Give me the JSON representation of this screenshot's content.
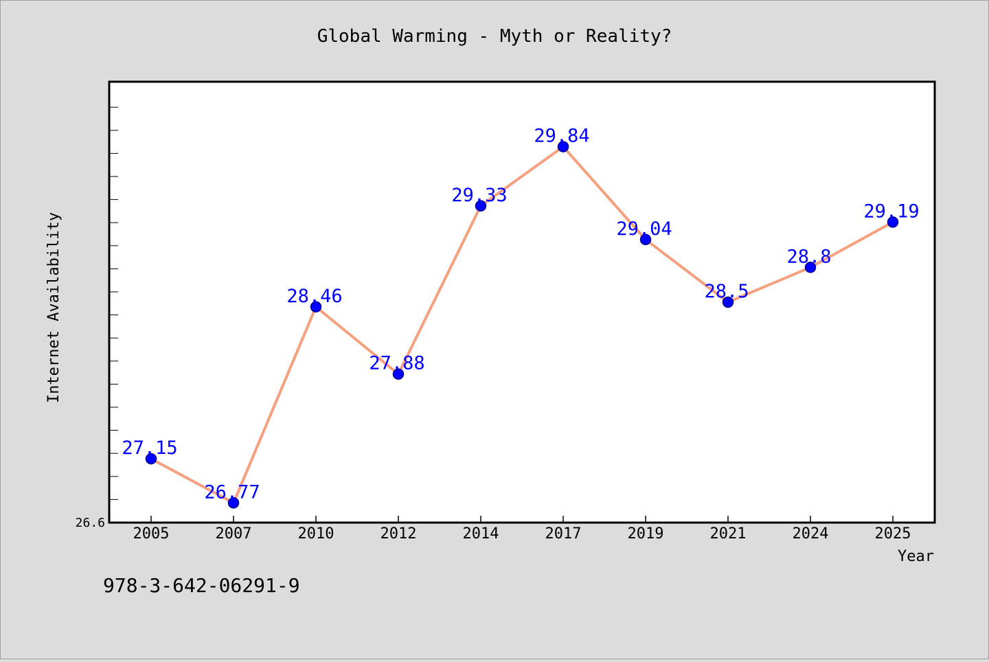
{
  "chart_data": {
    "type": "line",
    "title": "Global Warming - Myth or Reality?",
    "xlabel": "Year",
    "ylabel": "Internet Availability",
    "categories": [
      "2005",
      "2007",
      "2010",
      "2012",
      "2014",
      "2017",
      "2019",
      "2021",
      "2024",
      "2025"
    ],
    "values": [
      27.15,
      26.77,
      28.46,
      27.88,
      29.33,
      29.84,
      29.04,
      28.5,
      28.8,
      29.19
    ],
    "data_labels": [
      "27.15",
      "26.77",
      "28.46",
      "27.88",
      "29.33",
      "29.84",
      "29.04",
      "28.5",
      "28.8",
      "29.19"
    ],
    "ylim": [
      26.6,
      30.4
    ],
    "y_tick_label": "26.6",
    "grid": false,
    "legend": "none",
    "colors": {
      "line": "#f5a07f",
      "marker": "#0000ff",
      "marker_edge": "#00008b",
      "data_label": "#0000ff",
      "background": "#dcdcdc",
      "plot_background": "#ffffff"
    }
  },
  "footer": {
    "isbn": "978-3-642-06291-9"
  }
}
